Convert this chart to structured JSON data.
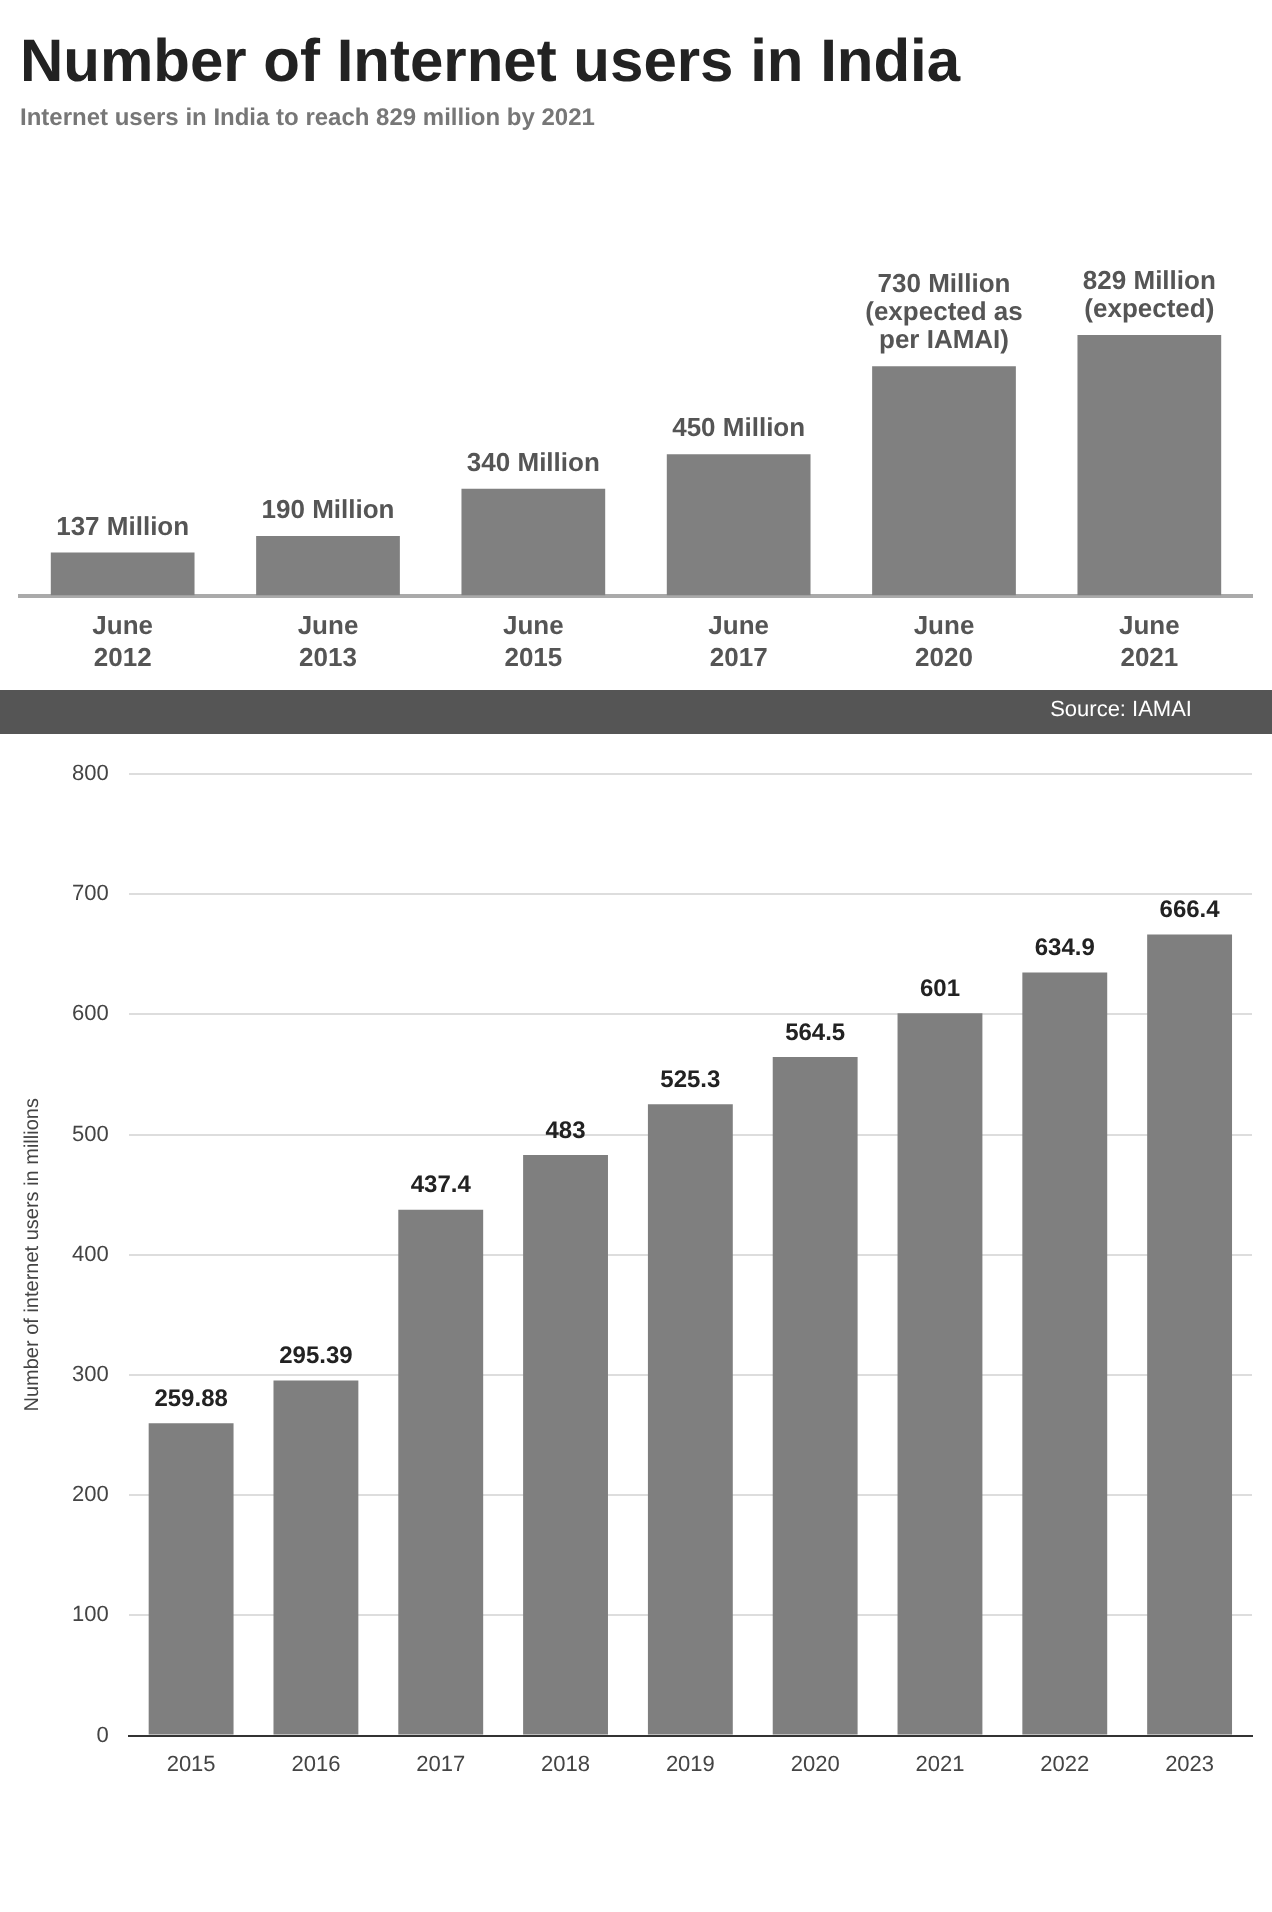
{
  "chart_data": [
    {
      "type": "bar",
      "title": "Number of Internet users in India",
      "subtitle": "Internet users in India to reach 829 million by 2021",
      "categories": [
        "June 2012",
        "June 2013",
        "June 2015",
        "June 2017",
        "June 2020",
        "June 2021"
      ],
      "values": [
        137,
        190,
        340,
        450,
        730,
        829
      ],
      "color": "#808080",
      "value_labels": [
        "137 Million",
        "190 Million",
        "340 Million",
        "450 Million",
        "730 Million (expected as per IAMAI)",
        "829 Million (expected)"
      ],
      "annotations": [
        "Source: IAMAI"
      ]
    },
    {
      "type": "bar",
      "ylabel": "Number of internet users in millions",
      "categories": [
        "2015",
        "2016",
        "2017",
        "2018",
        "2019",
        "2020",
        "2021",
        "2022",
        "2023"
      ],
      "values": [
        259.88,
        295.39,
        437.4,
        483,
        525.3,
        564.5,
        601,
        634.9,
        666.4
      ],
      "color": "#7f7f7f",
      "ylim": [
        0,
        800
      ],
      "yticks": [
        0,
        100,
        200,
        300,
        400,
        500,
        600,
        700,
        800
      ],
      "grid": "y",
      "data_labels": true
    }
  ]
}
